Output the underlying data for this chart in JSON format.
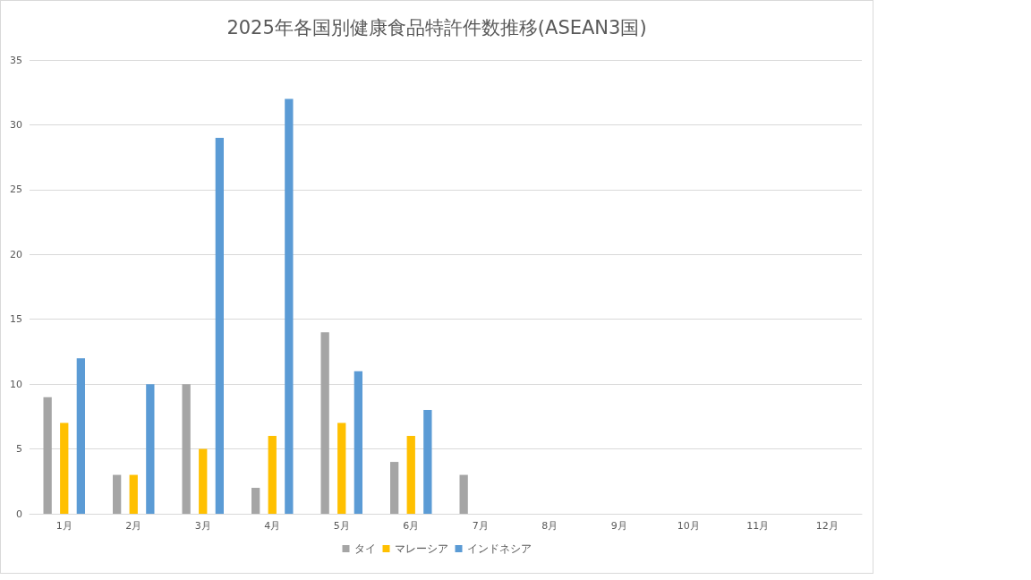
{
  "chart_data": {
    "type": "bar",
    "title": "2025年各国別健康食品特許件数推移(ASEAN3国)",
    "categories": [
      "1月",
      "2月",
      "3月",
      "4月",
      "5月",
      "6月",
      "7月",
      "8月",
      "9月",
      "10月",
      "11月",
      "12月"
    ],
    "series": [
      {
        "name": "タイ",
        "color": "#a5a5a5",
        "values": [
          9,
          3,
          10,
          2,
          14,
          4,
          3,
          null,
          null,
          null,
          null,
          null
        ]
      },
      {
        "name": "マレーシア",
        "color": "#ffc000",
        "values": [
          7,
          3,
          5,
          6,
          7,
          6,
          null,
          null,
          null,
          null,
          null,
          null
        ]
      },
      {
        "name": "インドネシア",
        "color": "#5b9bd5",
        "values": [
          12,
          10,
          29,
          32,
          11,
          8,
          null,
          null,
          null,
          null,
          null,
          null
        ]
      }
    ],
    "ylim": [
      0,
      35
    ],
    "yticks": [
      0,
      5,
      10,
      15,
      20,
      25,
      30,
      35
    ],
    "grid": "y",
    "legend": "bottom"
  }
}
